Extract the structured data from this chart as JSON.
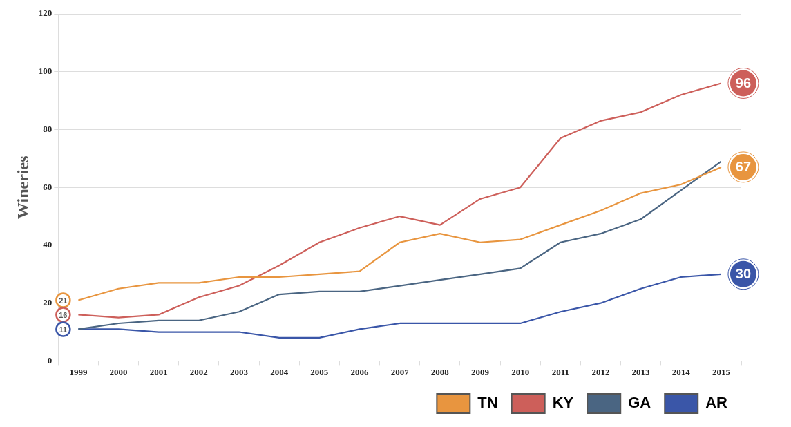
{
  "chart_data": {
    "type": "line",
    "ylabel": "Wineries",
    "categories": [
      "1999",
      "2000",
      "2001",
      "2002",
      "2003",
      "2004",
      "2005",
      "2006",
      "2007",
      "2008",
      "2009",
      "2010",
      "2011",
      "2012",
      "2013",
      "2014",
      "2015"
    ],
    "series": [
      {
        "name": "TN",
        "color": "#e8953f",
        "values": [
          21,
          25,
          27,
          27,
          29,
          29,
          30,
          31,
          41,
          44,
          41,
          42,
          47,
          52,
          58,
          61,
          67
        ],
        "value_labels": [
          "21",
          null,
          null,
          null,
          null,
          null,
          null,
          null,
          null,
          null,
          null,
          null,
          null,
          null,
          null,
          null,
          "67"
        ]
      },
      {
        "name": "KY",
        "color": "#cd5f5a",
        "values": [
          16,
          15,
          16,
          22,
          26,
          33,
          41,
          46,
          50,
          47,
          56,
          60,
          77,
          83,
          86,
          92,
          96
        ],
        "value_labels": [
          "16",
          null,
          null,
          null,
          null,
          null,
          null,
          null,
          null,
          null,
          null,
          null,
          null,
          null,
          null,
          null,
          "96"
        ]
      },
      {
        "name": "GA",
        "color": "#4a6582",
        "values": [
          11,
          13,
          14,
          14,
          17,
          23,
          24,
          24,
          26,
          28,
          30,
          32,
          41,
          44,
          49,
          59,
          69
        ]
      },
      {
        "name": "AR",
        "color": "#3a56a8",
        "values": [
          11,
          11,
          10,
          10,
          10,
          8,
          8,
          11,
          13,
          13,
          13,
          13,
          17,
          20,
          25,
          29,
          30
        ],
        "value_labels": [
          "11",
          null,
          null,
          null,
          null,
          null,
          null,
          null,
          null,
          null,
          null,
          null,
          null,
          null,
          null,
          null,
          "30"
        ]
      }
    ],
    "ylim": [
      0,
      120
    ],
    "yticks": [
      0,
      20,
      40,
      60,
      80,
      100,
      120
    ],
    "grid": "y",
    "legend": "bottom right",
    "marker": "none",
    "line_style": "solid"
  }
}
